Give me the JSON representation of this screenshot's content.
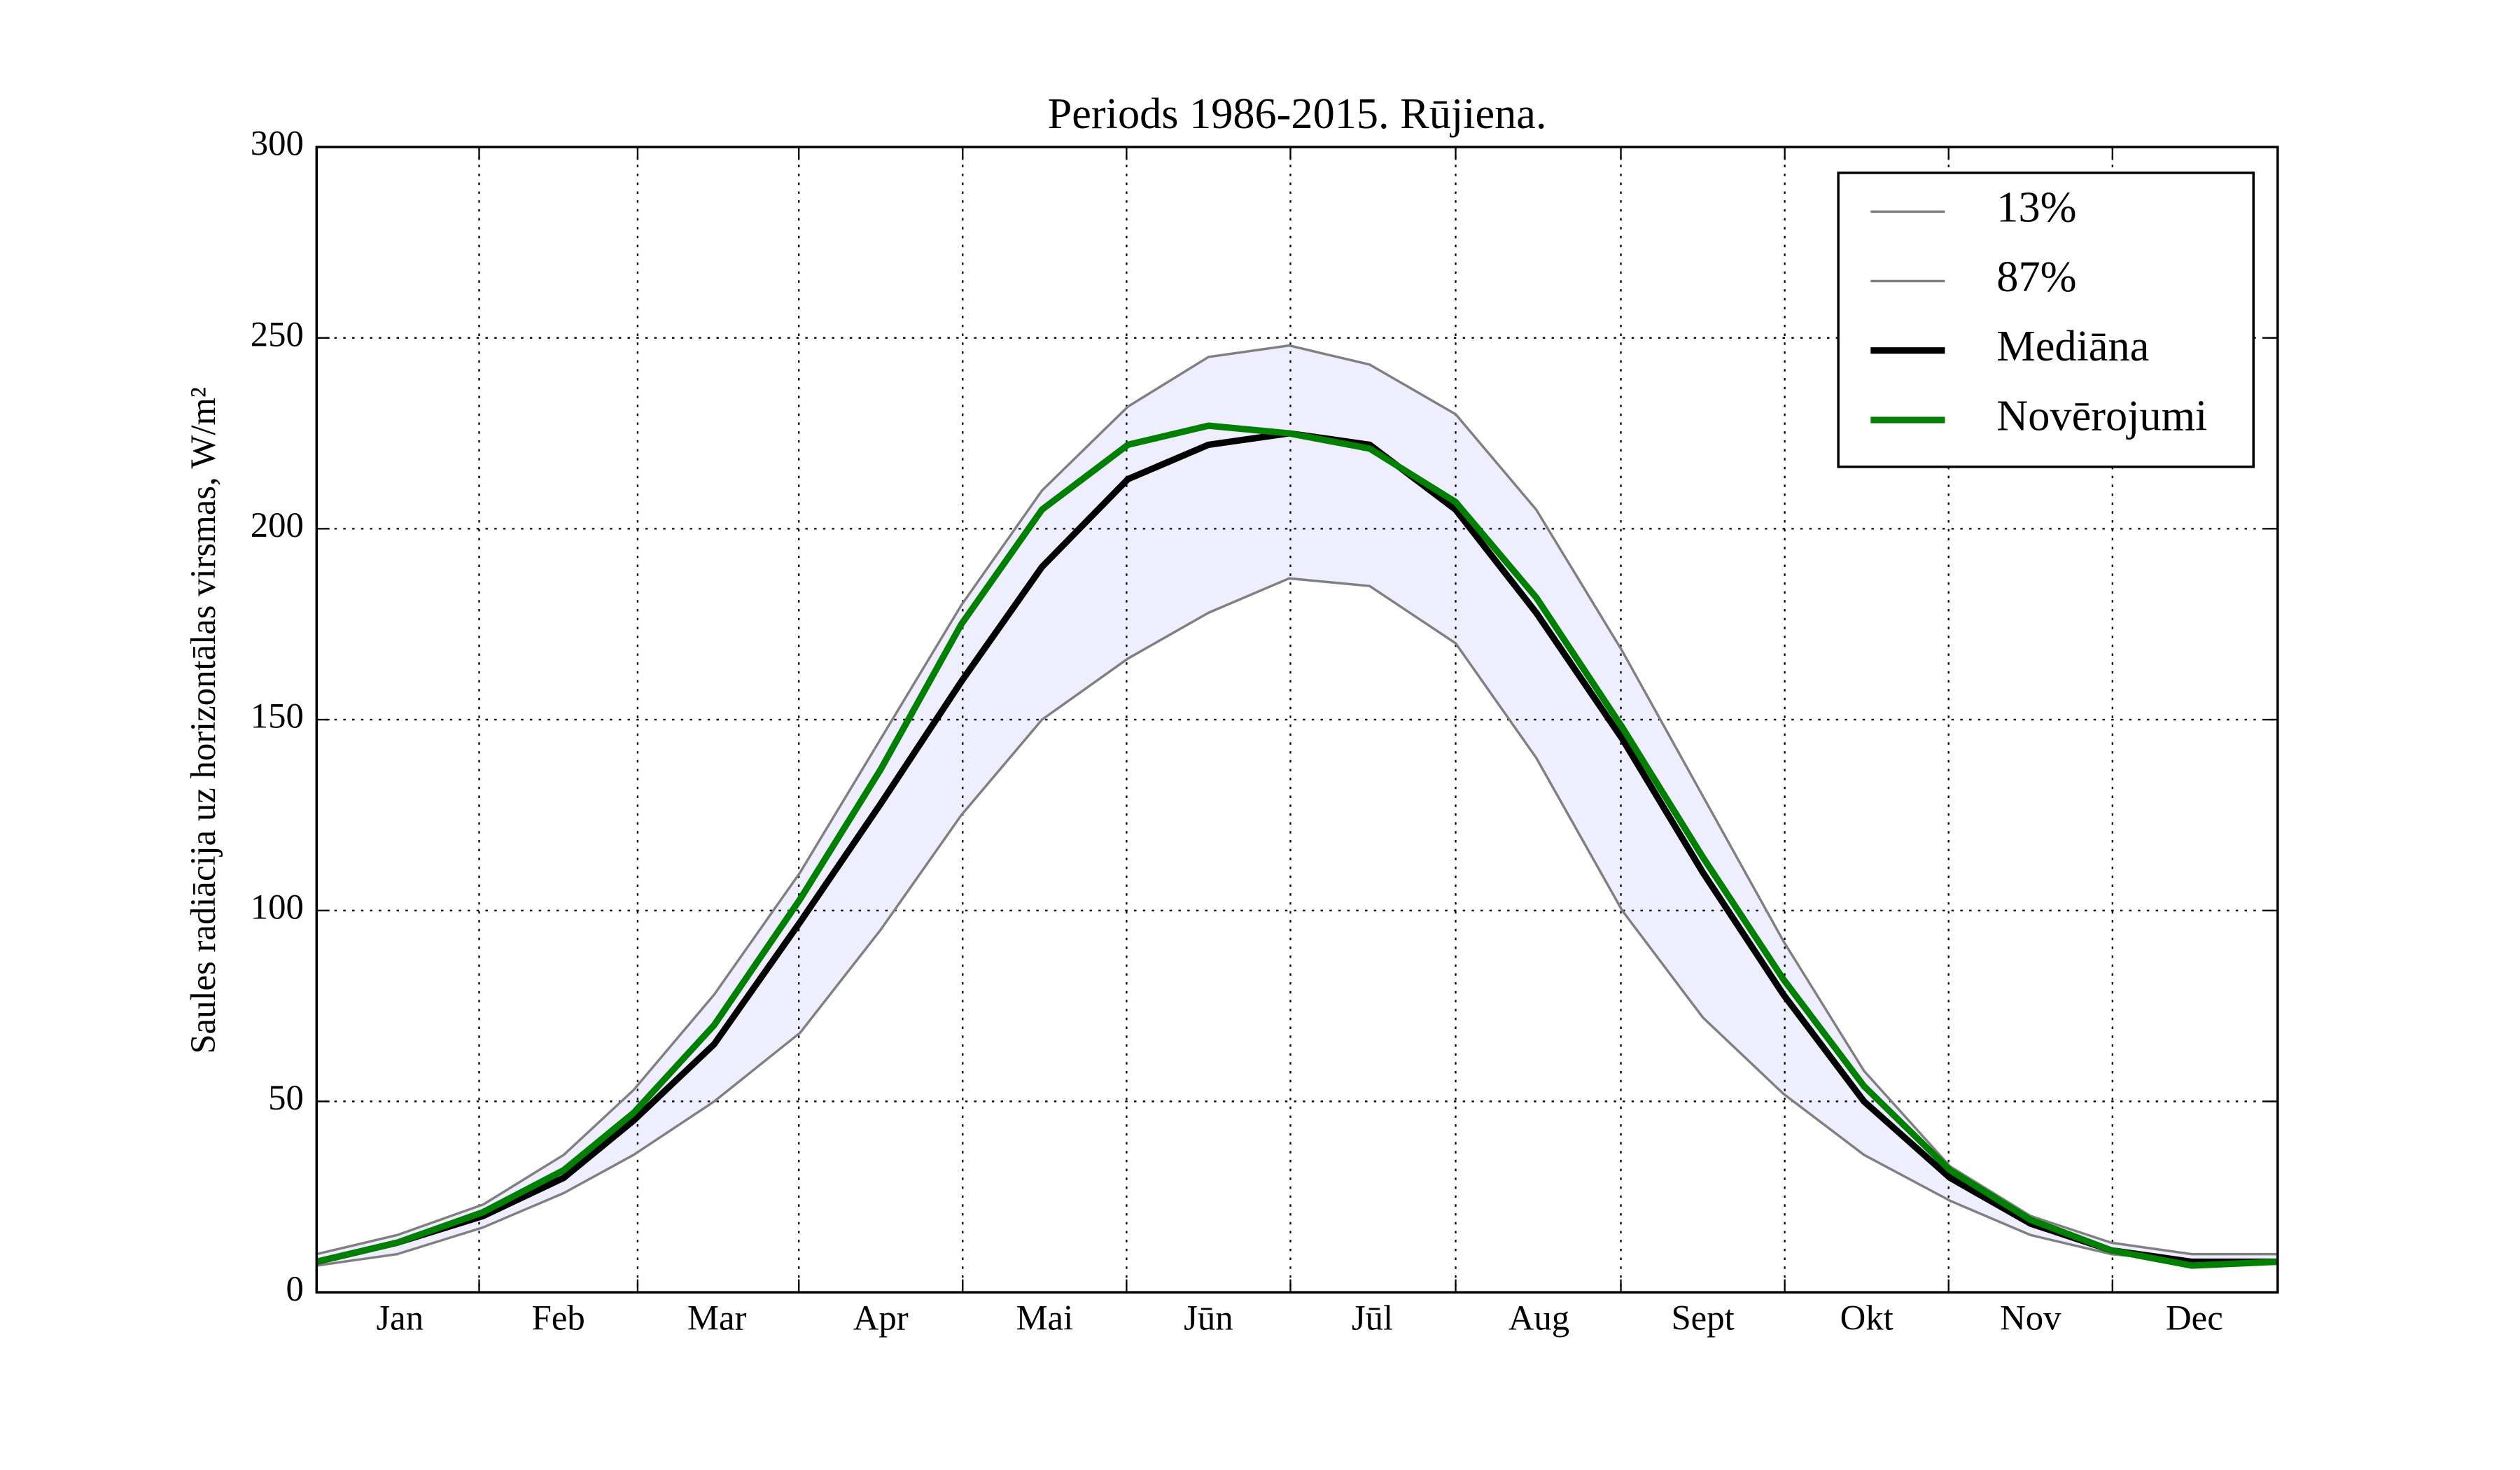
{
  "chart_data": {
    "type": "line",
    "title": "Periods 1986-2015. Rūjiena.",
    "y_label": "Saules radiācija uz horizontālas virsmas, W/m²",
    "x": [
      0,
      15,
      31,
      46,
      59,
      74,
      90,
      105,
      120,
      135,
      151,
      166,
      181,
      196,
      212,
      227,
      243,
      258,
      273,
      288,
      304,
      319,
      334,
      349,
      365
    ],
    "series": [
      {
        "name": "13%",
        "color": "#808080",
        "width": 1.5,
        "values": [
          7,
          10,
          17,
          26,
          36,
          50,
          68,
          95,
          125,
          150,
          166,
          178,
          187,
          185,
          170,
          140,
          100,
          72,
          52,
          36,
          24,
          15,
          10,
          8,
          8
        ]
      },
      {
        "name": "87%",
        "color": "#808080",
        "width": 1.5,
        "values": [
          10,
          15,
          23,
          36,
          53,
          78,
          110,
          145,
          180,
          210,
          232,
          245,
          248,
          243,
          230,
          205,
          168,
          130,
          92,
          58,
          33,
          20,
          13,
          10,
          10
        ]
      },
      {
        "name": "Mediāna",
        "color": "#000000",
        "width": 4,
        "values": [
          8,
          13,
          20,
          30,
          45,
          65,
          97,
          128,
          160,
          190,
          213,
          222,
          225,
          222,
          205,
          178,
          145,
          110,
          78,
          50,
          30,
          18,
          11,
          8,
          8
        ]
      },
      {
        "name": "Novērojumi",
        "color": "#008000",
        "width": 4,
        "values": [
          8,
          13,
          21,
          32,
          47,
          70,
          103,
          137,
          175,
          205,
          222,
          227,
          225,
          221,
          207,
          182,
          148,
          114,
          82,
          54,
          32,
          19,
          11,
          7,
          8
        ]
      }
    ],
    "band_fill": "#eeeeff",
    "xlim": [
      0,
      365
    ],
    "xticks": [
      {
        "value": 15.5,
        "label": "Jan"
      },
      {
        "value": 45,
        "label": "Feb"
      },
      {
        "value": 74.5,
        "label": "Mar"
      },
      {
        "value": 105,
        "label": "Apr"
      },
      {
        "value": 135.5,
        "label": "Mai"
      },
      {
        "value": 166,
        "label": "Jūn"
      },
      {
        "value": 196.5,
        "label": "Jūl"
      },
      {
        "value": 227.5,
        "label": "Aug"
      },
      {
        "value": 258,
        "label": "Sept"
      },
      {
        "value": 288.5,
        "label": "Okt"
      },
      {
        "value": 319,
        "label": "Nov"
      },
      {
        "value": 349.5,
        "label": "Dec"
      }
    ],
    "ylim": [
      0,
      300
    ],
    "yticks": [
      0,
      50,
      100,
      150,
      200,
      250,
      300
    ],
    "grid": true,
    "legend": "upper right"
  }
}
